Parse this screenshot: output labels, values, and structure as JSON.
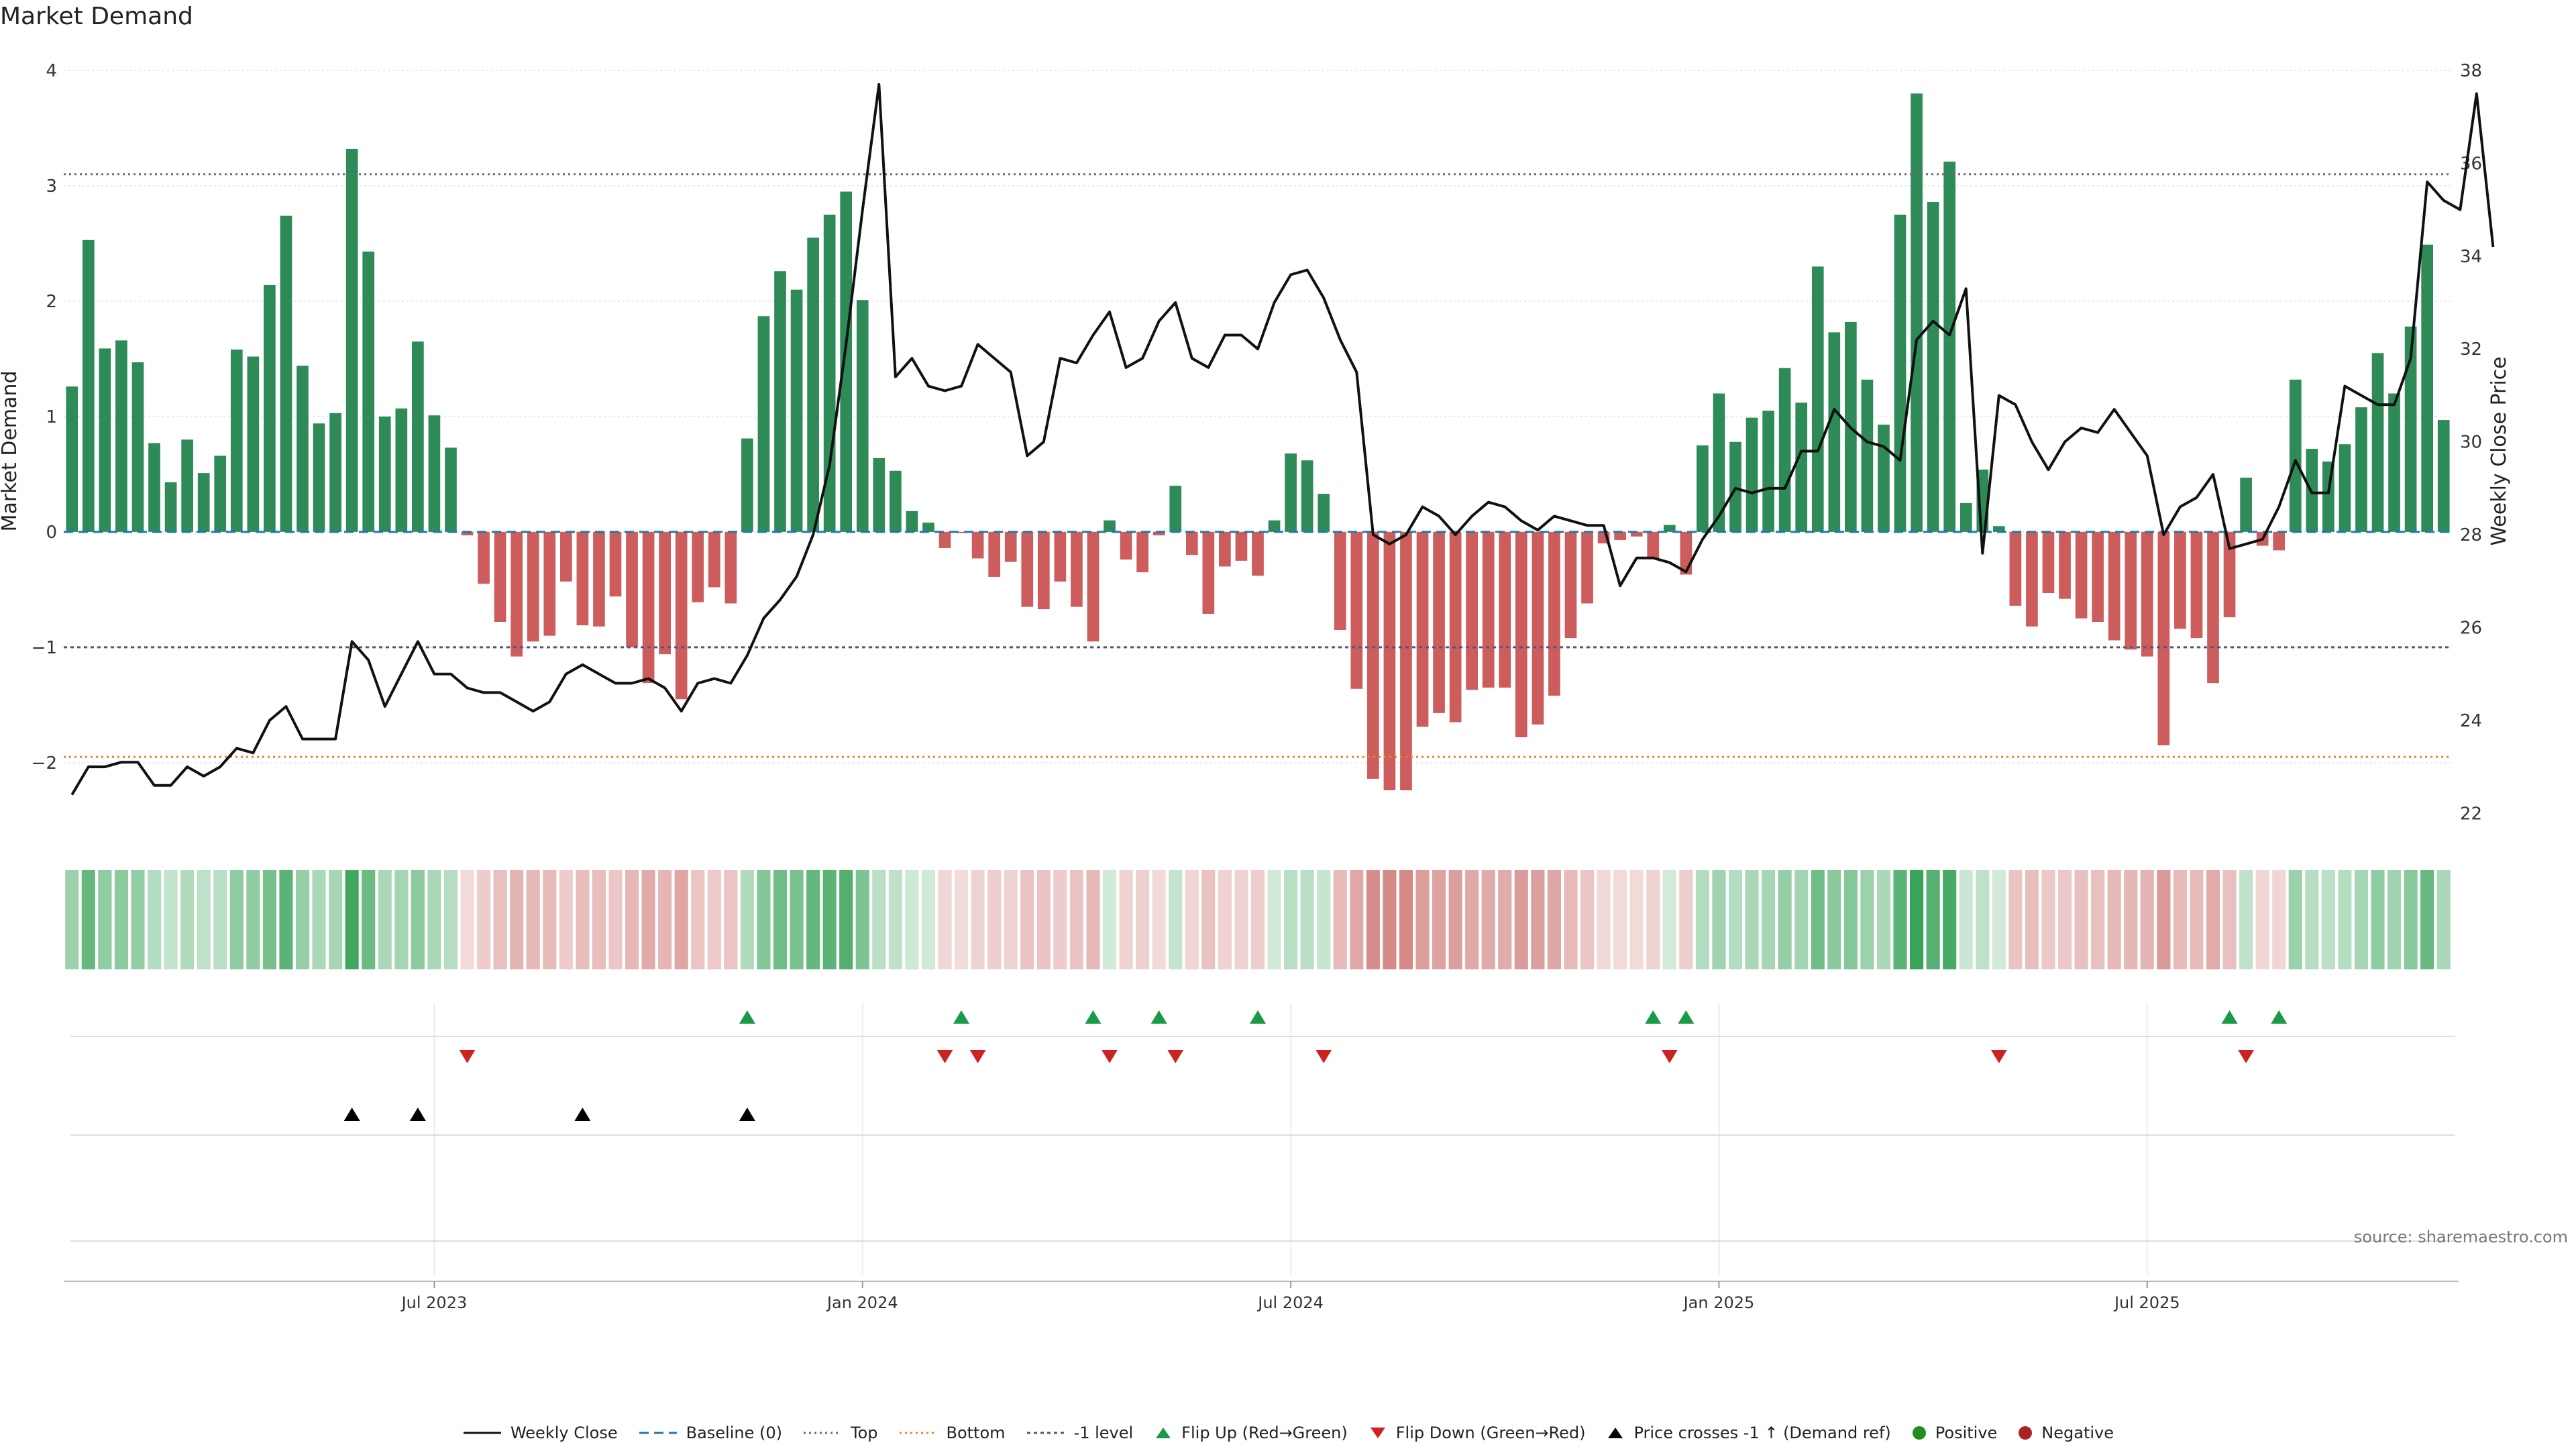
{
  "title": "Market Demand",
  "source": "source: sharemaestro.com",
  "colors": {
    "positive_bar": "#2e8b57",
    "negative_bar": "#cd5c5c",
    "price_line": "#111111",
    "baseline": "#1f77b4",
    "top": "#6a6a8a",
    "bottom": "#e08a1e",
    "minus1": "#555577",
    "flip_up": "#1a9a44",
    "flip_down": "#cc2222",
    "cross_up": "#000000",
    "positive_dot": "#228b22",
    "negative_dot": "#aa2222"
  },
  "chart_data": {
    "type": "bar",
    "title": "Market Demand",
    "ylabel": "Market Demand",
    "y2label": "Weekly Close Price",
    "ylim": [
      -2.6,
      4.0
    ],
    "y2lim": [
      21.6,
      38.0
    ],
    "yticks": [
      -2,
      -1,
      0,
      1,
      2,
      3,
      4
    ],
    "y2ticks": [
      22,
      24,
      26,
      28,
      30,
      32,
      34,
      36,
      38
    ],
    "ytick_labels": [
      "−2",
      "−1",
      "0",
      "1",
      "2",
      "3",
      "4"
    ],
    "y2tick_labels": [
      "22",
      "24",
      "26",
      "28",
      "30",
      "32",
      "34",
      "36",
      "38"
    ],
    "xticks": [
      22,
      48,
      74,
      100,
      126
    ],
    "xtick_labels": [
      "Jul 2023",
      "Jan 2024",
      "Jul 2024",
      "Jan 2025",
      "Jul 2025"
    ],
    "levels": {
      "baseline": 0,
      "top": 3.1,
      "bottom": -1.95,
      "minus1": -1
    },
    "demand": [
      1.26,
      2.53,
      1.59,
      1.66,
      1.47,
      0.77,
      0.43,
      0.8,
      0.51,
      0.66,
      1.58,
      1.52,
      2.14,
      2.74,
      1.44,
      0.94,
      1.03,
      3.32,
      2.43,
      1.0,
      1.07,
      1.65,
      1.01,
      0.73,
      -0.03,
      -0.45,
      -0.78,
      -1.08,
      -0.95,
      -0.9,
      -0.43,
      -0.81,
      -0.82,
      -0.56,
      -1.0,
      -1.31,
      -1.06,
      -1.45,
      -0.61,
      -0.48,
      -0.62,
      0.81,
      1.87,
      2.26,
      2.1,
      2.55,
      2.75,
      2.95,
      2.01,
      0.64,
      0.53,
      0.18,
      0.08,
      -0.14,
      -0.01,
      -0.23,
      -0.39,
      -0.26,
      -0.65,
      -0.67,
      -0.43,
      -0.65,
      -0.95,
      0.1,
      -0.24,
      -0.35,
      -0.03,
      0.4,
      -0.2,
      -0.71,
      -0.3,
      -0.25,
      -0.38,
      0.1,
      0.68,
      0.62,
      0.33,
      -0.85,
      -1.36,
      -2.14,
      -2.24,
      -2.24,
      -1.69,
      -1.57,
      -1.65,
      -1.37,
      -1.35,
      -1.35,
      -1.78,
      -1.67,
      -1.42,
      -0.92,
      -0.62,
      -0.1,
      -0.07,
      -0.04,
      -0.23,
      0.06,
      -0.37,
      0.75,
      1.2,
      0.78,
      0.99,
      1.05,
      1.42,
      1.12,
      2.3,
      1.73,
      1.82,
      1.32,
      0.93,
      2.75,
      3.8,
      2.86,
      3.21,
      0.25,
      0.54,
      0.05,
      -0.64,
      -0.82,
      -0.53,
      -0.58,
      -0.75,
      -0.78,
      -0.94,
      -1.02,
      -1.08,
      -1.85,
      -0.84,
      -0.92,
      -1.31,
      -0.74,
      0.47,
      -0.12,
      -0.16,
      1.32,
      0.72,
      0.61,
      0.76,
      1.08,
      1.55,
      1.2,
      1.78,
      2.49,
      0.97
    ],
    "price": [
      22.4,
      23.0,
      23.0,
      23.1,
      23.1,
      22.6,
      22.6,
      23.0,
      22.8,
      23.0,
      23.4,
      23.3,
      24.0,
      24.3,
      23.6,
      23.6,
      23.6,
      25.7,
      25.3,
      24.3,
      25.0,
      25.7,
      25.0,
      25.0,
      24.7,
      24.6,
      24.6,
      24.4,
      24.2,
      24.4,
      25.0,
      25.2,
      25.0,
      24.8,
      24.8,
      24.9,
      24.7,
      24.2,
      24.8,
      24.9,
      24.8,
      25.4,
      26.2,
      26.6,
      27.1,
      28.0,
      29.5,
      32.1,
      35.0,
      37.7,
      31.4,
      31.8,
      31.2,
      31.1,
      31.2,
      32.1,
      31.8,
      31.5,
      29.7,
      30.0,
      31.8,
      31.7,
      32.3,
      32.8,
      31.6,
      31.8,
      32.6,
      33.0,
      31.8,
      31.6,
      32.3,
      32.3,
      32.0,
      33.0,
      33.6,
      33.7,
      33.1,
      32.2,
      31.5,
      28.0,
      27.8,
      28.0,
      28.6,
      28.4,
      28.0,
      28.4,
      28.7,
      28.6,
      28.3,
      28.1,
      28.4,
      28.3,
      28.2,
      28.2,
      26.9,
      27.5,
      27.5,
      27.4,
      27.2,
      27.9,
      28.4,
      29.0,
      28.9,
      29.0,
      29.0,
      29.8,
      29.8,
      30.7,
      30.3,
      30.0,
      29.9,
      29.6,
      32.2,
      32.6,
      32.3,
      33.3,
      27.6,
      31.0,
      30.8,
      30.0,
      29.4,
      30.0,
      30.3,
      30.2,
      30.7,
      30.2,
      29.7,
      28.0,
      28.6,
      28.8,
      29.3,
      27.7,
      27.8,
      27.9,
      28.6,
      29.6,
      28.9,
      28.9,
      31.2,
      31.0,
      30.8,
      30.8,
      31.8,
      35.6,
      35.2,
      35.0,
      37.5,
      34.2
    ],
    "flip_up_idx": [
      41,
      54,
      62,
      66,
      72,
      96,
      98,
      131,
      134
    ],
    "flip_down_idx": [
      24,
      53,
      55,
      63,
      67,
      76,
      97,
      117,
      132
    ],
    "cross_up_idx": [
      17,
      21,
      31,
      41
    ],
    "legend_entries": [
      "Weekly Close",
      "Baseline (0)",
      "Top",
      "Bottom",
      "-1 level",
      "Flip Up (Red→Green)",
      "Flip Down (Green→Red)",
      "Price crosses -1 ↑ (Demand ref)",
      "Positive",
      "Negative"
    ]
  },
  "legend": [
    {
      "key": "line",
      "label": "Weekly Close"
    },
    {
      "key": "baseline",
      "label": "Baseline (0)"
    },
    {
      "key": "top",
      "label": "Top"
    },
    {
      "key": "bottom",
      "label": "Bottom"
    },
    {
      "key": "minus1",
      "label": "-1 level"
    },
    {
      "key": "flipup",
      "label": "Flip Up (Red→Green)"
    },
    {
      "key": "flipdown",
      "label": "Flip Down (Green→Red)"
    },
    {
      "key": "crossup",
      "label": "Price crosses -1 ↑ (Demand ref)"
    },
    {
      "key": "pos",
      "label": "Positive"
    },
    {
      "key": "neg",
      "label": "Negative"
    }
  ]
}
